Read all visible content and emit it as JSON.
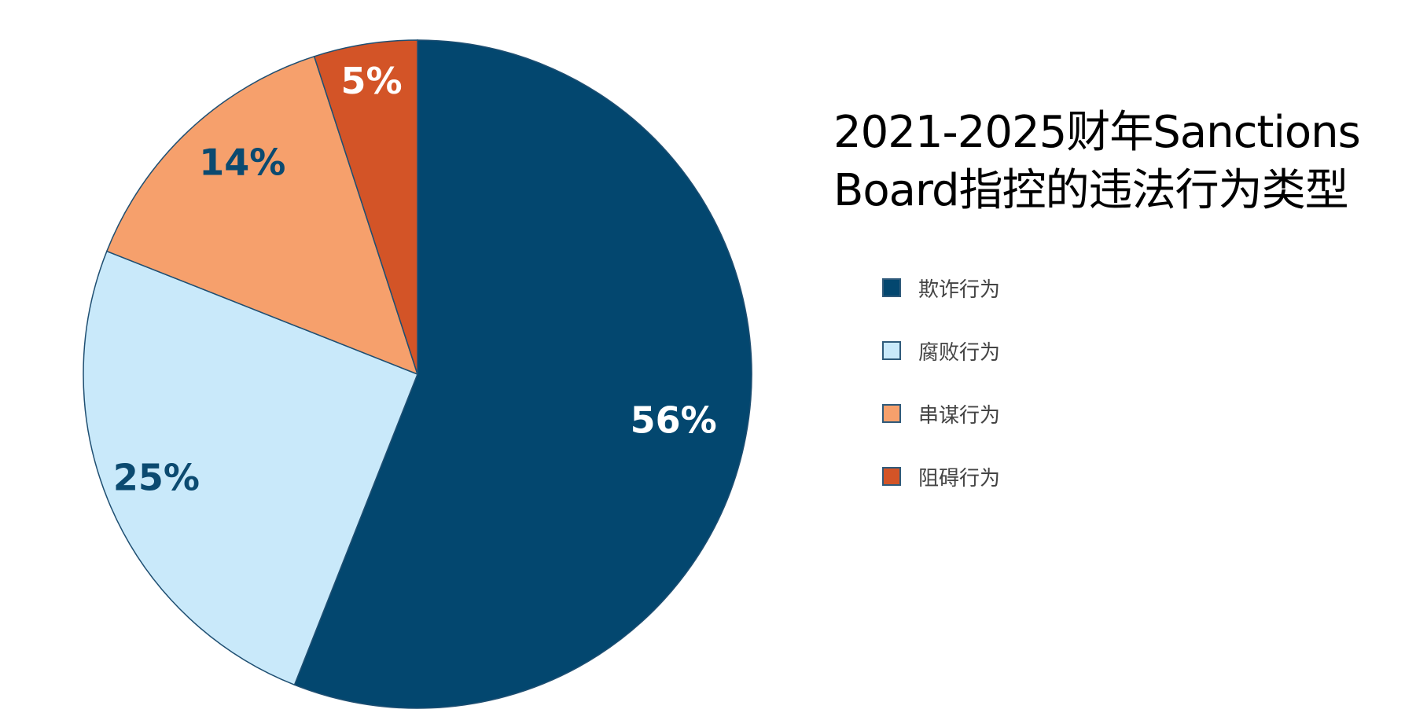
{
  "chart_data": {
    "type": "pie",
    "title_lines": [
      "2021-2025财年Sanctions",
      "Board指控的违法行为类型"
    ],
    "start_angle": "top",
    "direction": "clockwise",
    "slices": [
      {
        "label": "欺诈行为",
        "value": 56,
        "display": "56%",
        "color": "#03476f",
        "label_color": "#ffffff"
      },
      {
        "label": "腐败行为",
        "value": 25,
        "display": "25%",
        "color": "#c9e9fa",
        "label_color": "#0b4a70"
      },
      {
        "label": "串谋行为",
        "value": 14,
        "display": "14%",
        "color": "#f6a06c",
        "label_color": "#0b4a70"
      },
      {
        "label": "阻碍行为",
        "value": 5,
        "display": "5%",
        "color": "#d35427",
        "label_color": "#ffffff"
      }
    ],
    "legend_position": "right"
  }
}
